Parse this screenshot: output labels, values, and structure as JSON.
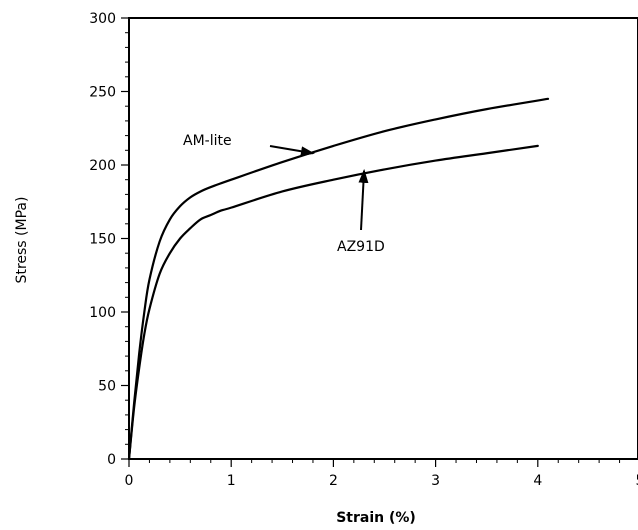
{
  "chart_data": {
    "type": "line",
    "title": "",
    "xlabel": "Strain (%)",
    "ylabel": "Stress (MPa)",
    "xlim": [
      0,
      5
    ],
    "ylim": [
      0,
      300
    ],
    "x_ticks": [
      "0",
      "1",
      "2",
      "3",
      "4",
      "5"
    ],
    "y_ticks": [
      "0",
      "50",
      "100",
      "150",
      "200",
      "250",
      "300"
    ],
    "grid": false,
    "series": [
      {
        "label": "AM-lite",
        "x": [
          0,
          0.05,
          0.1,
          0.15,
          0.2,
          0.3,
          0.4,
          0.5,
          0.6,
          0.7,
          0.8,
          1.0,
          1.5,
          2.0,
          2.5,
          3.0,
          3.5,
          4.1
        ],
        "y": [
          0,
          38,
          72,
          100,
          122,
          148,
          163,
          172,
          178,
          182,
          185,
          190,
          202,
          213,
          223,
          231,
          238,
          245
        ]
      },
      {
        "label": "AZ91D",
        "x": [
          0,
          0.05,
          0.1,
          0.15,
          0.2,
          0.3,
          0.4,
          0.5,
          0.6,
          0.7,
          0.8,
          0.9,
          1.0,
          1.5,
          2.0,
          2.5,
          3.0,
          3.5,
          4.0
        ],
        "y": [
          0,
          35,
          62,
          85,
          102,
          126,
          140,
          150,
          157,
          163,
          166,
          169,
          171,
          182,
          190,
          197,
          203,
          208,
          213
        ]
      }
    ],
    "annotations": [
      {
        "text": "AM-lite",
        "arrow_to": [
          1.8,
          208
        ]
      },
      {
        "text": "AZ91D",
        "arrow_to": [
          2.3,
          196
        ]
      }
    ]
  }
}
